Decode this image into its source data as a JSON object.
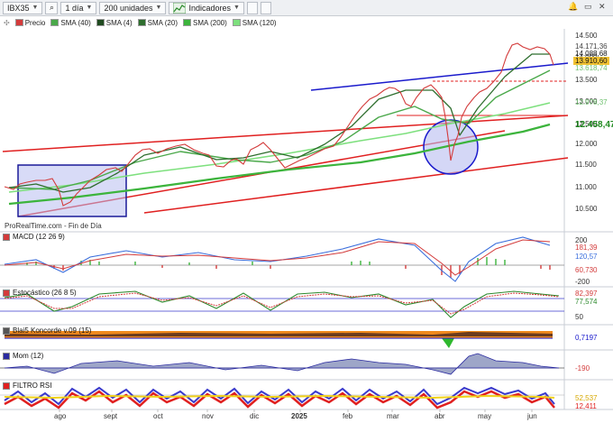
{
  "toolbar": {
    "instrument": "IBX35",
    "period": "1 día",
    "units": "200 unidades",
    "indicators": "Indicadores"
  },
  "legend": [
    {
      "label": "Precio",
      "color": "#d33b3b"
    },
    {
      "label": "SMA (40)",
      "color": "#4aa84a"
    },
    {
      "label": "SMA (4)",
      "color": "#1f4a1f"
    },
    {
      "label": "SMA (20)",
      "color": "#2e6e2e"
    },
    {
      "label": "SMA (200)",
      "color": "#3cb43c"
    },
    {
      "label": "SMA (120)",
      "color": "#7ee07e"
    }
  ],
  "price_axis": {
    "ticks": [
      "14.500",
      "14.000",
      "13.500",
      "13.000",
      "12.500",
      "12.000",
      "11.500",
      "11.000",
      "10.500"
    ],
    "tags": [
      {
        "text": "14.171,36",
        "color": "#444444",
        "bg": "#ffffff"
      },
      {
        "text": "14.088,68",
        "color": "#111111",
        "bg": "#ffffff"
      },
      {
        "text": "13.910,60",
        "color": "#111111",
        "bg": "#f1c232"
      },
      {
        "text": "13.618,74",
        "color": "#6ec06e",
        "bg": "#ffffff"
      },
      {
        "text": "12.978,37",
        "color": "#6ec06e",
        "bg": "#ffffff"
      },
      {
        "text": "12.458,47",
        "color": "#1f8a1f",
        "bg": "#ffffff"
      }
    ]
  },
  "source": "ProRealTime.com - Fin de Día",
  "panels": {
    "macd": {
      "label": "MACD (12 26 9)",
      "ticks": [
        "200",
        "-200"
      ],
      "tags": [
        "181,39",
        "120,57",
        "60,730"
      ]
    },
    "estocastico": {
      "label": "Estocástico (26 8 5)",
      "ticks": [
        "50"
      ],
      "tags": [
        "82,397",
        "77,574"
      ]
    },
    "koncorde": {
      "label": "Blai5 Koncorde v.09 (15)",
      "tags": [
        "0,7197"
      ]
    },
    "mom": {
      "label": "Mom (12)",
      "tags": [
        "-190"
      ]
    },
    "filtro": {
      "label": "FILTRO RSI",
      "tags": [
        "52,537",
        "12,411"
      ]
    }
  },
  "x_axis": [
    "ago",
    "sept",
    "oct",
    "nov",
    "dic",
    "2025",
    "feb",
    "mar",
    "abr",
    "may",
    "jun"
  ],
  "colors": {
    "price_up": "#d33b3b",
    "price_down": "#111111",
    "trend_red": "#e02020",
    "trend_blue": "#1a1acc",
    "box": "#1a1a99"
  }
}
